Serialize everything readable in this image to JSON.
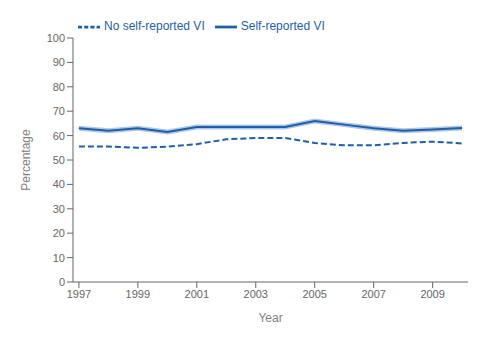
{
  "chart_data": {
    "type": "line",
    "xlabel": "Year",
    "ylabel": "Percentage",
    "x": [
      1997,
      1998,
      1999,
      2000,
      2001,
      2002,
      2003,
      2004,
      2005,
      2006,
      2007,
      2008,
      2009,
      2010
    ],
    "series": [
      {
        "name": "Self-reported VI",
        "color": "#1f5fa6",
        "line_style": "solid",
        "values": [
          63.0,
          62.0,
          63.0,
          61.5,
          63.5,
          63.5,
          63.5,
          63.5,
          66.0,
          64.5,
          63.0,
          62.0,
          62.5,
          63.1
        ],
        "band": {
          "lower": [
            62.0,
            61.0,
            62.0,
            60.5,
            62.5,
            62.5,
            62.5,
            62.5,
            65.0,
            63.5,
            62.0,
            61.0,
            61.5,
            62.1
          ],
          "upper": [
            64.0,
            63.0,
            64.0,
            62.5,
            64.5,
            64.5,
            64.5,
            64.5,
            67.0,
            65.5,
            64.0,
            63.0,
            63.5,
            64.1
          ],
          "color": "#aec6e8"
        }
      },
      {
        "name": "No self-reported VI",
        "color": "#1f5fa6",
        "line_style": "dashed",
        "values": [
          55.5,
          55.5,
          55.0,
          55.5,
          56.5,
          58.5,
          59.0,
          59.0,
          57.0,
          56.0,
          56.0,
          57.0,
          57.5,
          56.8
        ]
      }
    ],
    "xlim": [
      1996.8,
      2010.2
    ],
    "xticks": [
      1997,
      1999,
      2001,
      2003,
      2005,
      2007,
      2009
    ],
    "ylim": [
      0,
      100
    ],
    "yticks": [
      0,
      10,
      20,
      30,
      40,
      50,
      60,
      70,
      80,
      90,
      100
    ],
    "grid": false,
    "legend": "upper left"
  }
}
